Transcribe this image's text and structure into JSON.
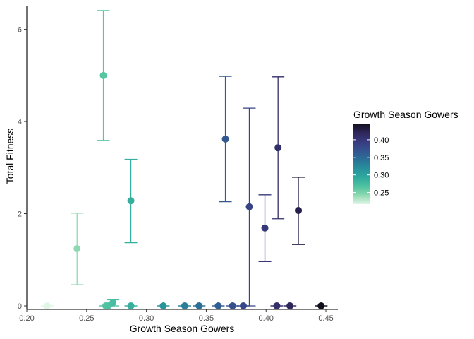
{
  "chart_data": {
    "type": "scatter",
    "title": "",
    "xlabel": "Growth Season Gowers",
    "ylabel": "Total Fitness",
    "xlim": [
      0.2,
      0.46
    ],
    "ylim": [
      0,
      6.5
    ],
    "x_ticks": [
      0.2,
      0.25,
      0.3,
      0.35,
      0.4,
      0.45
    ],
    "x_tick_labels": [
      "0.20",
      "0.25",
      "0.30",
      "0.35",
      "0.40",
      "0.45"
    ],
    "y_ticks": [
      0,
      2,
      4,
      6
    ],
    "y_tick_labels": [
      "0",
      "2",
      "4",
      "6"
    ],
    "grid": false,
    "legend": {
      "title": "Growth Season Gowers",
      "placement": "right",
      "range": [
        0.217,
        0.446
      ],
      "ticks": [
        0.25,
        0.3,
        0.35,
        0.4
      ],
      "tick_labels": [
        "0.25",
        "0.30",
        "0.35",
        "0.40"
      ],
      "colors": [
        "#e0f5e6",
        "#8dd9b0",
        "#4ec2a0",
        "#2ea99e",
        "#278f9b",
        "#2b6f97",
        "#34538f",
        "#383a7f",
        "#2d2659",
        "#120f1d"
      ]
    },
    "points": [
      {
        "x": 0.217,
        "y": 0.0,
        "ymin": 0.0,
        "ymax": 0.0
      },
      {
        "x": 0.242,
        "y": 1.24,
        "ymin": 0.46,
        "ymax": 2.01
      },
      {
        "x": 0.264,
        "y": 5.0,
        "ymin": 3.59,
        "ymax": 6.41
      },
      {
        "x": 0.266,
        "y": 0.0,
        "ymin": 0.0,
        "ymax": 0.0
      },
      {
        "x": 0.268,
        "y": 0.0,
        "ymin": 0.0,
        "ymax": 0.0
      },
      {
        "x": 0.272,
        "y": 0.07,
        "ymin": 0.0,
        "ymax": 0.13
      },
      {
        "x": 0.287,
        "y": 2.28,
        "ymin": 1.37,
        "ymax": 3.18
      },
      {
        "x": 0.287,
        "y": 0.0,
        "ymin": 0.0,
        "ymax": 0.0
      },
      {
        "x": 0.314,
        "y": 0.0,
        "ymin": 0.0,
        "ymax": 0.0
      },
      {
        "x": 0.332,
        "y": 0.0,
        "ymin": 0.0,
        "ymax": 0.0
      },
      {
        "x": 0.344,
        "y": 0.0,
        "ymin": 0.0,
        "ymax": 0.0
      },
      {
        "x": 0.36,
        "y": 0.0,
        "ymin": 0.0,
        "ymax": 0.0
      },
      {
        "x": 0.366,
        "y": 3.62,
        "ymin": 2.26,
        "ymax": 4.98
      },
      {
        "x": 0.372,
        "y": 0.0,
        "ymin": 0.0,
        "ymax": 0.0
      },
      {
        "x": 0.381,
        "y": 0.0,
        "ymin": 0.0,
        "ymax": 0.0
      },
      {
        "x": 0.386,
        "y": 2.15,
        "ymin": 0.0,
        "ymax": 4.29
      },
      {
        "x": 0.399,
        "y": 1.69,
        "ymin": 0.96,
        "ymax": 2.41
      },
      {
        "x": 0.409,
        "y": 0.0,
        "ymin": 0.0,
        "ymax": 0.0
      },
      {
        "x": 0.41,
        "y": 3.43,
        "ymin": 1.89,
        "ymax": 4.97
      },
      {
        "x": 0.42,
        "y": 0.0,
        "ymin": 0.0,
        "ymax": 0.0
      },
      {
        "x": 0.427,
        "y": 2.07,
        "ymin": 1.33,
        "ymax": 2.79
      },
      {
        "x": 0.446,
        "y": 0.0,
        "ymin": 0.0,
        "ymax": 0.0
      }
    ]
  }
}
